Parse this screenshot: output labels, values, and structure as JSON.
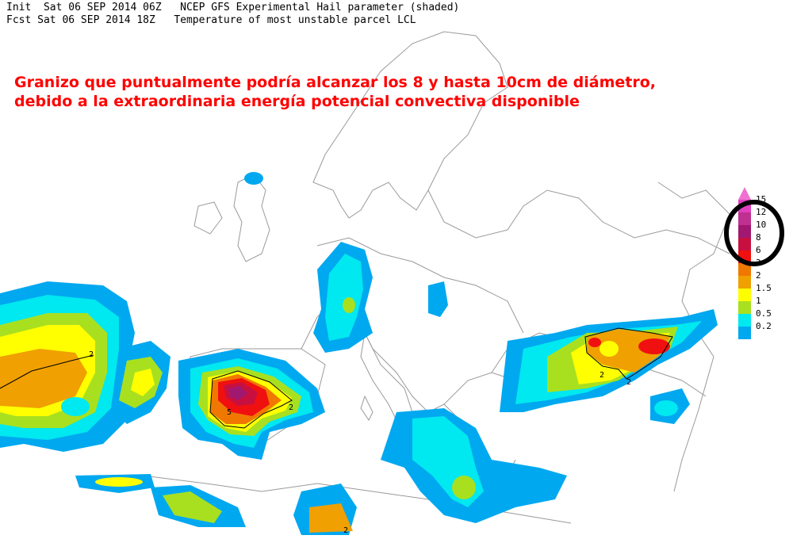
{
  "header": {
    "line1": "Init  Sat 06 SEP 2014 06Z   NCEP GFS Experimental Hail parameter (shaded)",
    "line2": "Fcst Sat 06 SEP 2014 18Z   Temperature of most unstable parcel LCL"
  },
  "annotation": {
    "line1": "Granizo que puntualmente podría alcanzar los 8 y hasta 10cm de diámetro,",
    "line2": "debido a la extraordinaria energía potencial convectiva disponible"
  },
  "legend": {
    "labels": [
      "15",
      "12",
      "10",
      "8",
      "6",
      "3",
      "2",
      "1.5",
      "1",
      "0.5",
      "0.2"
    ],
    "colors": [
      "#f070d0",
      "#e040c0",
      "#c03090",
      "#a01870",
      "#c81040",
      "#f01010",
      "#f07800",
      "#f0a000",
      "#ffff00",
      "#a8e020",
      "#00e8f0",
      "#00a8f0"
    ]
  },
  "contour_labels": [
    "2",
    "5",
    "2",
    "2",
    "2",
    "2"
  ]
}
